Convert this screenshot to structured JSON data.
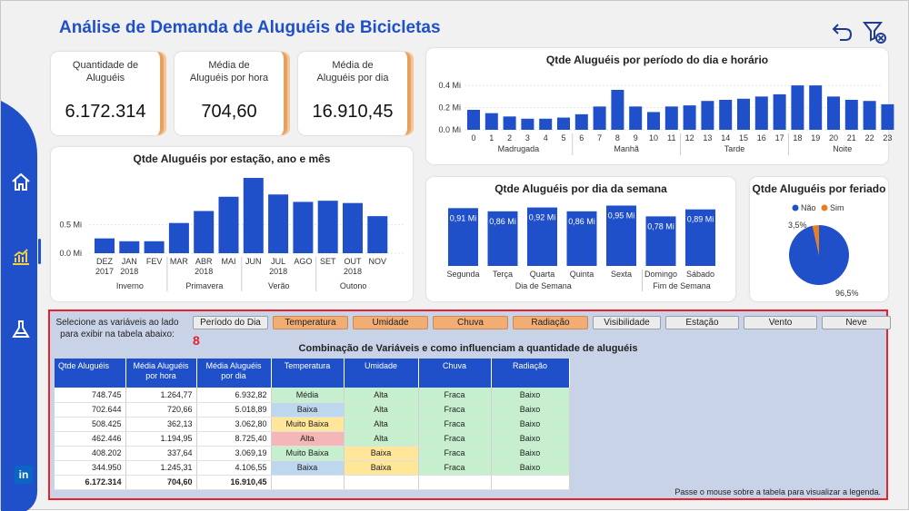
{
  "title": "Análise de Demanda de Aluguéis de Bicicletas",
  "header_icons": [
    "undo-icon",
    "clear-filter-icon"
  ],
  "sidebar": {
    "items": [
      "home-icon",
      "chart-icon",
      "lab-icon"
    ],
    "footer": "in"
  },
  "kpis": [
    {
      "label": "Quantidade de Aluguéis",
      "value": "6.172.314"
    },
    {
      "label": "Média de Aluguéis por hora",
      "value": "704,60"
    },
    {
      "label": "Média de Aluguéis por dia",
      "value": "16.910,45"
    }
  ],
  "colors": {
    "accent": "#1f4fc9",
    "orange": "#f2ad75",
    "bar": "#1f4fc9",
    "sim": "#e67e22",
    "red": "#e8212b"
  },
  "chart_data": [
    {
      "type": "bar",
      "title": "Qtde Aluguéis por período do dia e horário",
      "categories": [
        "0",
        "1",
        "2",
        "3",
        "4",
        "5",
        "6",
        "7",
        "8",
        "9",
        "10",
        "11",
        "12",
        "13",
        "14",
        "15",
        "16",
        "17",
        "18",
        "19",
        "20",
        "21",
        "22",
        "23"
      ],
      "values": [
        0.18,
        0.15,
        0.12,
        0.1,
        0.1,
        0.11,
        0.14,
        0.21,
        0.36,
        0.21,
        0.16,
        0.21,
        0.22,
        0.26,
        0.27,
        0.28,
        0.3,
        0.32,
        0.4,
        0.4,
        0.3,
        0.27,
        0.26,
        0.23
      ],
      "groups": [
        "Madrugada",
        "Manhã",
        "Tarde",
        "Noite"
      ],
      "yticks": [
        "0.0 Mi",
        "0.2 Mi",
        "0.4 Mi"
      ],
      "ylim": [
        0,
        0.45
      ]
    },
    {
      "type": "bar",
      "title": "Qtde Aluguéis por estação, ano e mês",
      "categories": [
        "DEZ",
        "JAN",
        "FEV",
        "MAR",
        "ABR",
        "MAI",
        "JUN",
        "JUL",
        "AGO",
        "SET",
        "OUT",
        "NOV"
      ],
      "years": [
        "2017",
        "2018",
        "",
        "",
        "2018",
        "",
        "",
        "2018",
        "",
        "",
        "2018",
        ""
      ],
      "values": [
        0.26,
        0.21,
        0.21,
        0.53,
        0.74,
        0.99,
        1.32,
        1.03,
        0.9,
        0.92,
        0.88,
        0.65
      ],
      "groups": [
        "Inverno",
        "Primavera",
        "Verão",
        "Outono"
      ],
      "yticks": [
        "0.0 Mi",
        "0.5 Mi"
      ],
      "ylim": [
        0,
        1.4
      ]
    },
    {
      "type": "bar",
      "title": "Qtde Aluguéis por dia da semana",
      "categories": [
        "Segunda",
        "Terça",
        "Quarta",
        "Quinta",
        "Sexta",
        "Domingo",
        "Sábado"
      ],
      "values": [
        0.91,
        0.86,
        0.92,
        0.86,
        0.95,
        0.78,
        0.89
      ],
      "labels": [
        "0,91 Mi",
        "0,86 Mi",
        "0,92 Mi",
        "0,86 Mi",
        "0,95 Mi",
        "0,78 Mi",
        "0,89 Mi"
      ],
      "groups": [
        "Dia de Semana",
        "Fim de Semana"
      ],
      "ylim": [
        0,
        1.0
      ]
    },
    {
      "type": "pie",
      "title": "Qtde Aluguéis por feriado",
      "legend": [
        "Não",
        "Sim"
      ],
      "values": [
        96.5,
        3.5
      ],
      "labels": [
        "96,5%",
        "3,5%"
      ]
    }
  ],
  "variables": {
    "hint": "Selecione as variáveis ao lado para exibir na tabela abaixo:",
    "badge": "8",
    "buttons": [
      {
        "label": "Período do Dia",
        "on": false
      },
      {
        "label": "Temperatura",
        "on": true
      },
      {
        "label": "Umidade",
        "on": true
      },
      {
        "label": "Chuva",
        "on": true
      },
      {
        "label": "Radiação",
        "on": true
      },
      {
        "label": "Visibilidade",
        "on": false
      },
      {
        "label": "Estação",
        "on": false
      },
      {
        "label": "Vento",
        "on": false
      },
      {
        "label": "Neve",
        "on": false
      }
    ]
  },
  "table": {
    "title": "Combinação de Variáveis e como influenciam a quantidade de aluguéis",
    "headers": [
      "Qtde Aluguéis",
      "Média Aluguéis por hora",
      "Média Aluguéis por dia",
      "Temperatura",
      "Umidade",
      "Chuva",
      "Radiação"
    ],
    "rows": [
      [
        "748.745",
        "1.264,77",
        "6.932,82",
        "Média",
        "Alta",
        "Fraca",
        "Baixo"
      ],
      [
        "702.644",
        "720,66",
        "5.018,89",
        "Baixa",
        "Alta",
        "Fraca",
        "Baixo"
      ],
      [
        "508.425",
        "362,13",
        "3.062,80",
        "Muito Baixa",
        "Alta",
        "Fraca",
        "Baixo"
      ],
      [
        "462.446",
        "1.194,95",
        "8.725,40",
        "Alta",
        "Alta",
        "Fraca",
        "Baixo"
      ],
      [
        "408.202",
        "337,64",
        "3.069,19",
        "Muito Baixa",
        "Baixa",
        "Fraca",
        "Baixo"
      ],
      [
        "344.950",
        "1.245,31",
        "4.106,55",
        "Baixa",
        "Baixa",
        "Fraca",
        "Baixo"
      ]
    ],
    "cell_colors": [
      [
        null,
        null,
        null,
        "#c6efce",
        "#c6efce",
        "#c6efce",
        "#c6efce"
      ],
      [
        null,
        null,
        null,
        "#bdd7ee",
        "#c6efce",
        "#c6efce",
        "#c6efce"
      ],
      [
        null,
        null,
        null,
        "#ffe699",
        "#c6efce",
        "#c6efce",
        "#c6efce"
      ],
      [
        null,
        null,
        null,
        "#f4b6b6",
        "#c6efce",
        "#c6efce",
        "#c6efce"
      ],
      [
        null,
        null,
        null,
        "#c6efce",
        "#ffe699",
        "#c6efce",
        "#c6efce"
      ],
      [
        null,
        null,
        null,
        "#bdd7ee",
        "#ffe699",
        "#c6efce",
        "#c6efce"
      ]
    ],
    "total": [
      "6.172.314",
      "704,60",
      "16.910,45",
      "",
      "",
      "",
      ""
    ],
    "legend_note": "Passe o mouse sobre a tabela para visualizar a legenda."
  }
}
